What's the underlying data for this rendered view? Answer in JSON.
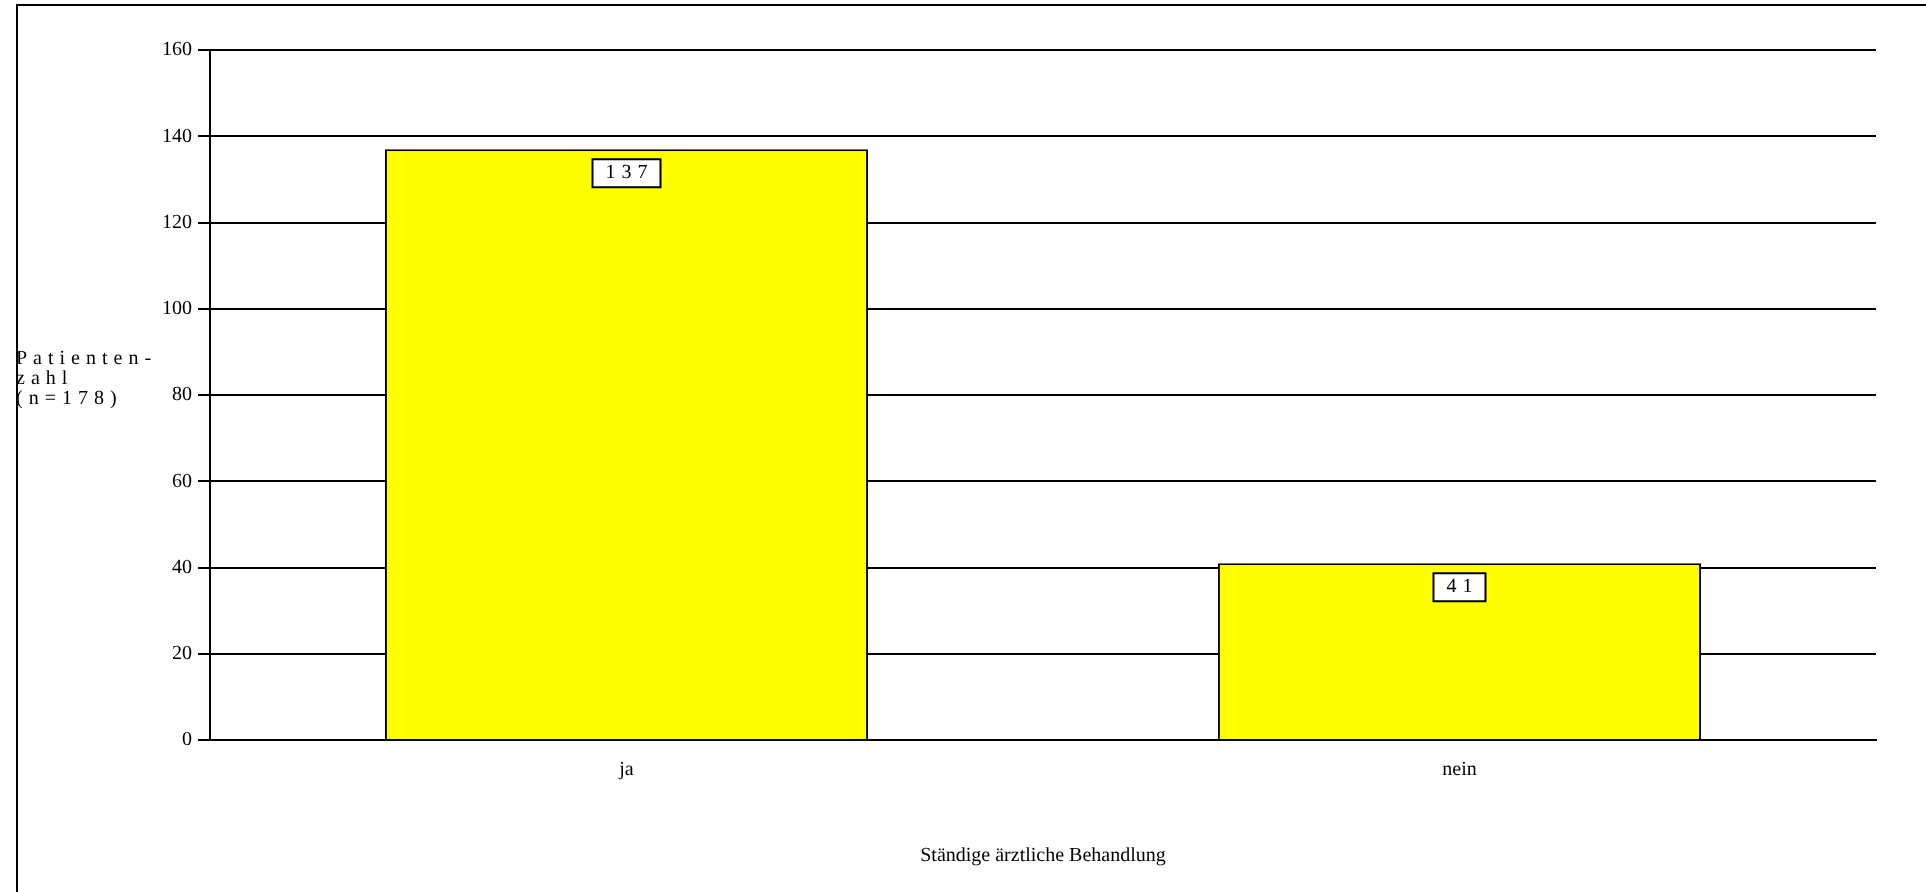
{
  "chart_data": {
    "type": "bar",
    "xlabel": "Ständige ärztliche Behandlung",
    "ylabel": "Patienten-\nzahl\n(n=178)",
    "categories": [
      "ja",
      "nein"
    ],
    "values": [
      137,
      41
    ],
    "color": "#ffff00",
    "ylim": [
      0,
      160
    ],
    "yticks": [
      0,
      20,
      40,
      60,
      80,
      100,
      120,
      140,
      160
    ],
    "grid": "y",
    "data_labels": true,
    "legend": false
  }
}
